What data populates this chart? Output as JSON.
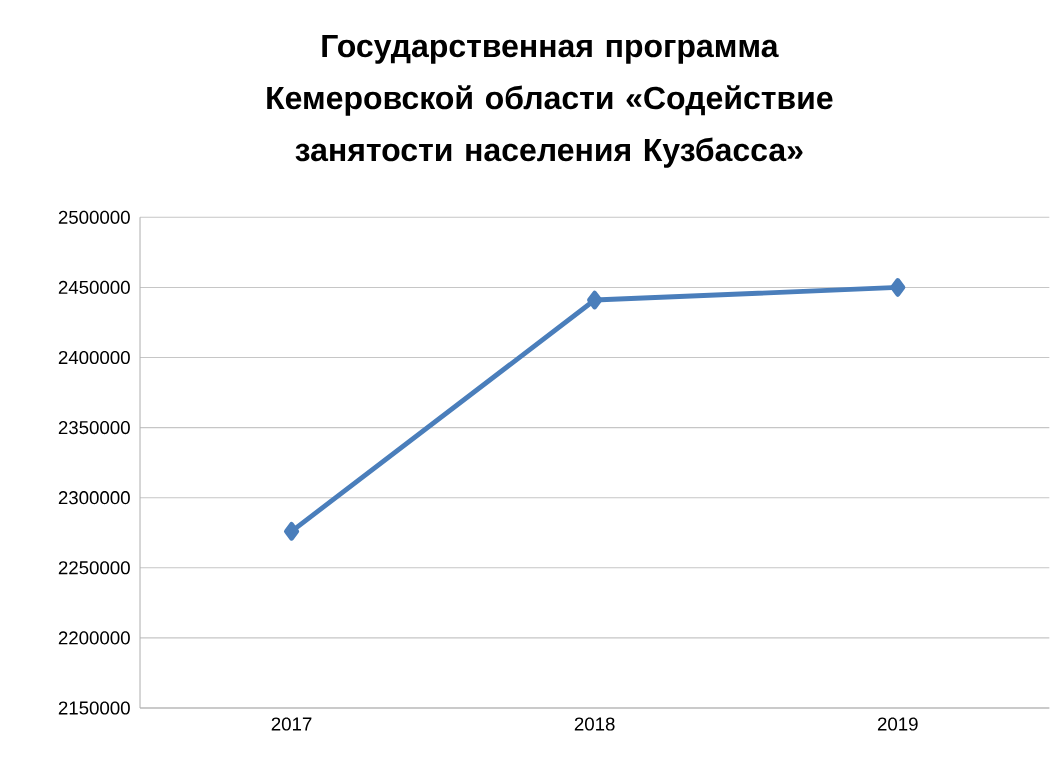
{
  "chart_data": {
    "type": "line",
    "title": "Государственная программа Кемеровской области «Содействие занятости населения Кузбасса»",
    "categories": [
      "2017",
      "2018",
      "2019"
    ],
    "series": [
      {
        "color": "#4a7ebb",
        "values": [
          2276000,
          2441000,
          2450000
        ]
      }
    ],
    "ylim": [
      2150000,
      2500000
    ],
    "yticks": [
      2150000,
      2200000,
      2250000,
      2300000,
      2350000,
      2400000,
      2450000,
      2500000
    ],
    "grid": "y",
    "marker": "diamond",
    "line_style": "solid"
  }
}
